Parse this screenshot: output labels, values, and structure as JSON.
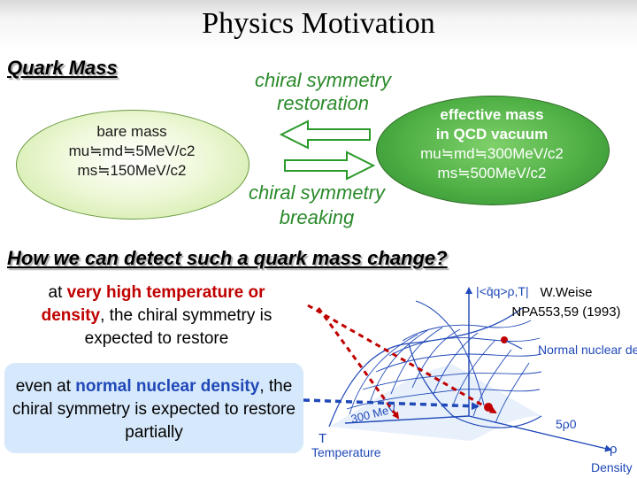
{
  "slide": {
    "title": "Physics Motivation",
    "quark_mass_heading": "Quark Mass",
    "restoration_label": "chiral symmetry restoration",
    "breaking_label": "chiral symmetry breaking"
  },
  "bare": {
    "title": "bare mass",
    "line1": "mu≒md≒5MeV/c2",
    "line2": "ms≒150MeV/c2"
  },
  "effective": {
    "title": "effective mass",
    "subtitle": "in QCD vacuum",
    "line1": "mu≒md≒300MeV/c2",
    "line2": "ms≒500MeV/c2"
  },
  "question": "How we can detect such a quark mass change?",
  "para1": {
    "pre": "at ",
    "highlight1": "very high temperature or",
    "highlight2": "density",
    "post": ", the chiral symmetry is expected to restore"
  },
  "para2": {
    "pre": "even at ",
    "highlight": "normal nuclear density",
    "post": ", the chiral symmetry is expected to restore partially"
  },
  "reference": {
    "author": "W.Weise",
    "citation": "NPA553,59 (1993)"
  },
  "plot": {
    "axis_z": "|<q̄q>ρ,T|",
    "axis_t": "T",
    "axis_t_label": "Temperature",
    "axis_rho": "ρ",
    "axis_rho_label": "Density",
    "temp_tick": "300 MeV",
    "rho_tick": "5ρ0",
    "normal_density_label": "Normal nuclear density"
  },
  "colors": {
    "arrow_green": "#2a9a2a",
    "red": "#c00000",
    "blue": "#1f48b8"
  }
}
